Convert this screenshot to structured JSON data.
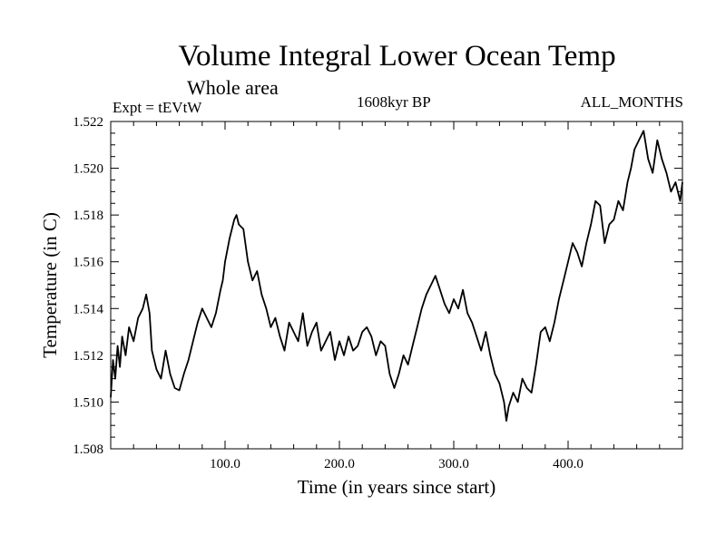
{
  "header": {
    "title": "Volume Integral Lower Ocean Temp",
    "subtitle": "Whole area",
    "experiment": "Expt = tEVtW",
    "period": "1608kyr BP",
    "months": "ALL_MONTHS"
  },
  "chart_data": {
    "type": "line",
    "title": "Volume Integral Lower Ocean Temp",
    "xlabel": "Time (in years since start)",
    "ylabel": "Temperature (in C)",
    "xlim": [
      0,
      500
    ],
    "ylim": [
      1.508,
      1.522
    ],
    "x_ticks": [
      100,
      200,
      300,
      400
    ],
    "x_tick_labels": [
      "100.0",
      "200.0",
      "300.0",
      "400.0"
    ],
    "y_ticks": [
      1.508,
      1.51,
      1.512,
      1.514,
      1.516,
      1.518,
      1.52,
      1.522
    ],
    "y_tick_labels": [
      "1.508",
      "1.510",
      "1.512",
      "1.514",
      "1.516",
      "1.518",
      "1.520",
      "1.522"
    ],
    "grid": false,
    "series": [
      {
        "name": "Temperature",
        "color": "#000000",
        "x": [
          0,
          2,
          4,
          6,
          8,
          10,
          13,
          16,
          20,
          24,
          28,
          31,
          34,
          36,
          40,
          44,
          48,
          52,
          56,
          60,
          64,
          68,
          72,
          76,
          80,
          84,
          88,
          92,
          96,
          98,
          100,
          104,
          108,
          110,
          112,
          116,
          120,
          124,
          128,
          132,
          136,
          140,
          144,
          148,
          152,
          156,
          160,
          164,
          168,
          172,
          176,
          180,
          184,
          188,
          192,
          196,
          200,
          204,
          208,
          212,
          216,
          220,
          224,
          228,
          232,
          236,
          240,
          244,
          248,
          252,
          256,
          260,
          264,
          268,
          272,
          276,
          280,
          284,
          288,
          292,
          296,
          300,
          304,
          308,
          312,
          316,
          320,
          324,
          328,
          332,
          336,
          340,
          344,
          346,
          348,
          352,
          356,
          360,
          364,
          368,
          372,
          376,
          380,
          384,
          388,
          392,
          396,
          400,
          404,
          408,
          412,
          416,
          420,
          424,
          428,
          432,
          436,
          440,
          444,
          448,
          452,
          455,
          458,
          462,
          466,
          470,
          474,
          478,
          482,
          486,
          490,
          494,
          498,
          500
        ],
        "values": [
          1.5102,
          1.5118,
          1.511,
          1.5124,
          1.5115,
          1.5128,
          1.512,
          1.5132,
          1.5126,
          1.5136,
          1.514,
          1.5146,
          1.5138,
          1.5122,
          1.5114,
          1.511,
          1.5122,
          1.5112,
          1.5106,
          1.5105,
          1.5112,
          1.5118,
          1.5126,
          1.5134,
          1.514,
          1.5136,
          1.5132,
          1.5138,
          1.5148,
          1.5152,
          1.516,
          1.517,
          1.5178,
          1.518,
          1.5176,
          1.5174,
          1.516,
          1.5152,
          1.5156,
          1.5146,
          1.514,
          1.5132,
          1.5136,
          1.5128,
          1.5122,
          1.5134,
          1.513,
          1.5126,
          1.5138,
          1.5124,
          1.513,
          1.5134,
          1.5122,
          1.5126,
          1.513,
          1.5118,
          1.5126,
          1.512,
          1.5128,
          1.5122,
          1.5124,
          1.513,
          1.5132,
          1.5128,
          1.512,
          1.5126,
          1.5124,
          1.5112,
          1.5106,
          1.5112,
          1.512,
          1.5116,
          1.5124,
          1.5132,
          1.514,
          1.5146,
          1.515,
          1.5154,
          1.5148,
          1.5142,
          1.5138,
          1.5144,
          1.514,
          1.5148,
          1.5138,
          1.5134,
          1.5128,
          1.5122,
          1.513,
          1.512,
          1.5112,
          1.5108,
          1.51,
          1.5092,
          1.5098,
          1.5104,
          1.51,
          1.511,
          1.5106,
          1.5104,
          1.5116,
          1.513,
          1.5132,
          1.5126,
          1.5134,
          1.5144,
          1.5152,
          1.516,
          1.5168,
          1.5164,
          1.5158,
          1.5168,
          1.5176,
          1.5186,
          1.5184,
          1.5168,
          1.5176,
          1.5178,
          1.5186,
          1.5182,
          1.5194,
          1.52,
          1.5208,
          1.5212,
          1.5216,
          1.5204,
          1.5198,
          1.5212,
          1.5204,
          1.5198,
          1.519,
          1.5194,
          1.5186,
          1.5194
        ]
      }
    ]
  }
}
